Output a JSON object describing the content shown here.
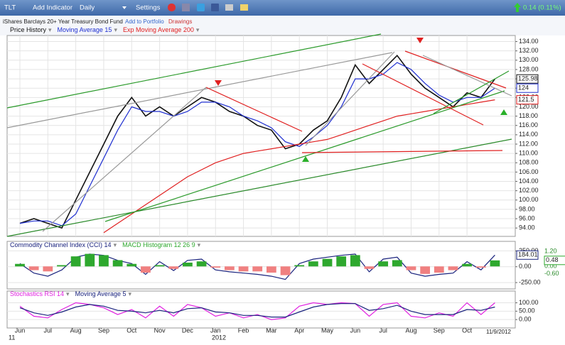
{
  "toolbar": {
    "symbol": "TLT",
    "add_indicator": "Add Indicator",
    "period": "Daily",
    "settings": "Settings",
    "change": "0.14 (0.11%)"
  },
  "header": {
    "name": "iShares Barclays 20+ Year Treasury Bond Fund",
    "portfolio": "Add to Portfolio",
    "drawings": "Drawings"
  },
  "chart_data": [
    {
      "type": "line",
      "categories": [
        "Jun",
        null,
        "Jul",
        null,
        "Aug",
        null,
        "Sep",
        null,
        "Oct",
        null,
        "Nov",
        null,
        "Dec",
        null,
        "Jan",
        null,
        "Feb",
        null,
        "Mar",
        null,
        "Apr",
        null,
        "May",
        null,
        "Jun",
        null,
        "Jul",
        null,
        "Aug",
        null,
        "Sep",
        null,
        "Oct",
        null,
        null
      ],
      "series": [
        {
          "name": "Price History",
          "color": "#111111",
          "values": [
            95,
            96,
            95,
            94,
            100,
            106,
            112,
            118,
            122,
            118,
            120,
            118,
            120,
            122,
            121,
            119,
            118,
            116,
            115,
            111,
            112,
            115,
            117,
            122,
            129,
            125,
            128,
            131,
            127,
            124,
            122,
            120,
            123,
            122,
            125.98
          ]
        },
        {
          "name": "Moving Average 15",
          "color": "#1f2fd0",
          "values": [
            95,
            95.5,
            95.5,
            94.5,
            97,
            103,
            109,
            115,
            120,
            119,
            119,
            118,
            119,
            121,
            121,
            120,
            118,
            117,
            115.5,
            112.5,
            111.5,
            113.5,
            116,
            120,
            126,
            126,
            127,
            129.5,
            128,
            125,
            122.5,
            121,
            122,
            122,
            124
          ]
        },
        {
          "name": "Exp Moving Average 200",
          "color": "#e02020",
          "values": [
            null,
            null,
            null,
            null,
            null,
            null,
            93,
            95,
            97,
            99,
            101,
            103,
            105,
            106.5,
            108,
            109,
            110,
            110.5,
            111,
            111.5,
            112,
            112.5,
            113,
            114,
            115,
            116,
            117,
            118,
            118.5,
            119,
            119.5,
            120,
            120.5,
            121,
            121.5
          ]
        }
      ],
      "ylim": [
        92.2,
        135.3
      ],
      "yticks": [
        {
          "value": 94,
          "label": "94.00"
        },
        {
          "value": 96,
          "label": "96.00"
        },
        {
          "value": 98,
          "label": "98.00"
        },
        {
          "value": 100,
          "label": "100.00"
        },
        {
          "value": 102,
          "label": "102.00"
        },
        {
          "value": 104,
          "label": "104.00"
        },
        {
          "value": 106,
          "label": "106.00"
        },
        {
          "value": 108,
          "label": "108.00"
        },
        {
          "value": 110,
          "label": "110.00"
        },
        {
          "value": 112,
          "label": "112.00"
        },
        {
          "value": 114,
          "label": "114.00"
        },
        {
          "value": 116,
          "label": "116.00"
        },
        {
          "value": 118,
          "label": "118.00"
        },
        {
          "value": 120,
          "label": "120.00"
        },
        {
          "value": 122,
          "label": "122.00"
        },
        {
          "value": 124,
          "label": "124.00"
        },
        {
          "value": 126,
          "label": "126.00"
        },
        {
          "value": 128,
          "label": "128.00"
        },
        {
          "value": 130,
          "label": "130.00"
        },
        {
          "value": 132,
          "label": "132.00"
        },
        {
          "value": 134,
          "label": "134.00"
        }
      ],
      "grid": true
    },
    {
      "type": "line",
      "series": [
        {
          "name": "Commodity Channel Index (CCI) 14",
          "color": "#1a237e",
          "values": [
            50,
            -100,
            -150,
            -50,
            150,
            200,
            180,
            100,
            50,
            -120,
            80,
            -60,
            100,
            120,
            -50,
            -80,
            -100,
            -120,
            -150,
            -200,
            50,
            120,
            150,
            180,
            200,
            -80,
            120,
            150,
            -100,
            -150,
            -120,
            -100,
            80,
            -50,
            184.01
          ]
        },
        {
          "name": "MACD Histogram 12 26 9",
          "type": "bar",
          "axis": "y2",
          "color": "#2ea82e",
          "negative_color": "#f08080",
          "values": [
            0.2,
            -0.3,
            -0.4,
            0.1,
            0.8,
            1.0,
            0.9,
            0.5,
            0.2,
            -0.5,
            0.1,
            -0.2,
            0.3,
            0.4,
            -0.1,
            -0.3,
            -0.4,
            -0.4,
            -0.5,
            -0.7,
            0.1,
            0.4,
            0.6,
            0.8,
            0.9,
            -0.2,
            0.4,
            0.5,
            -0.3,
            -0.6,
            -0.5,
            -0.3,
            0.2,
            -0.1,
            0.48
          ]
        }
      ],
      "ylim": [
        -350,
        400
      ],
      "yticks": [
        {
          "value": 250,
          "label": "250.00"
        },
        {
          "value": 0,
          "label": "0.00"
        },
        {
          "value": -250,
          "label": "-250.00"
        }
      ],
      "y2lim": [
        -1.8,
        2.0
      ],
      "y2ticks": [
        {
          "value": 1.2,
          "label": "1.20"
        },
        {
          "value": 0,
          "label": "0.00"
        },
        {
          "value": -0.6,
          "label": "-0.60"
        }
      ],
      "grid": true
    },
    {
      "type": "line",
      "series": [
        {
          "name": "Stochastics RSI 14",
          "color": "#e020e0",
          "values": [
            80,
            20,
            10,
            60,
            100,
            90,
            70,
            30,
            60,
            10,
            80,
            20,
            90,
            70,
            20,
            40,
            10,
            30,
            0,
            10,
            80,
            100,
            90,
            100,
            95,
            20,
            90,
            100,
            20,
            10,
            40,
            20,
            100,
            30,
            100
          ]
        },
        {
          "name": "Moving Average 5",
          "color": "#1a237e",
          "values": [
            70,
            40,
            25,
            45,
            75,
            90,
            80,
            55,
            50,
            40,
            55,
            40,
            65,
            70,
            45,
            40,
            25,
            25,
            15,
            15,
            45,
            75,
            90,
            95,
            95,
            55,
            65,
            85,
            50,
            30,
            30,
            30,
            60,
            55,
            75
          ]
        }
      ],
      "ylim": [
        -50,
        170
      ],
      "yticks": [
        {
          "value": 100,
          "label": "100.00"
        },
        {
          "value": 50,
          "label": "50.00"
        },
        {
          "value": 0,
          "label": "0.00"
        }
      ],
      "grid": true,
      "annotations": [
        "11",
        "2012",
        "11/9/2012"
      ]
    }
  ]
}
